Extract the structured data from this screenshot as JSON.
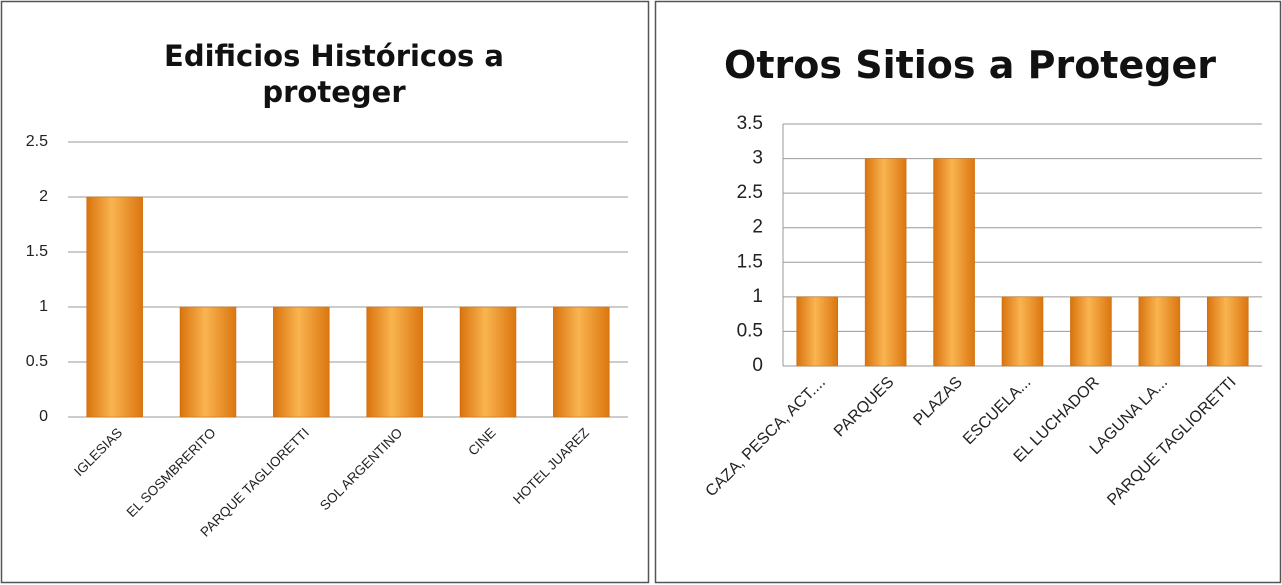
{
  "chart_data": [
    {
      "type": "bar",
      "title": "Edificios Históricos a proteger",
      "categories": [
        "IGLESIAS",
        "EL SOSMBRERITO",
        "PARQUE TAGLIORETTI",
        "SOL ARGENTINO",
        "CINE",
        "HOTEL JUAREZ"
      ],
      "values": [
        2,
        1,
        1,
        1,
        1,
        1
      ],
      "color": "#f29a2e",
      "ylim": [
        0,
        2.5
      ],
      "yticks": [
        0,
        0.5,
        1,
        1.5,
        2,
        2.5
      ],
      "grid": true
    },
    {
      "type": "bar",
      "title": "Otros Sitios a Proteger",
      "categories": [
        "CAZA, PESCA, ACT....",
        "PARQUES",
        "PLAZAS",
        "ESCUELA...",
        "EL LUCHADOR",
        "LAGUNA LA...",
        "PARQUE TAGLIORETTI"
      ],
      "values": [
        1,
        3,
        3,
        1,
        1,
        1,
        1
      ],
      "color": "#f29a2e",
      "ylim": [
        0,
        3.5
      ],
      "yticks": [
        0,
        0.5,
        1,
        1.5,
        2,
        2.5,
        3,
        3.5
      ],
      "grid": true
    }
  ]
}
